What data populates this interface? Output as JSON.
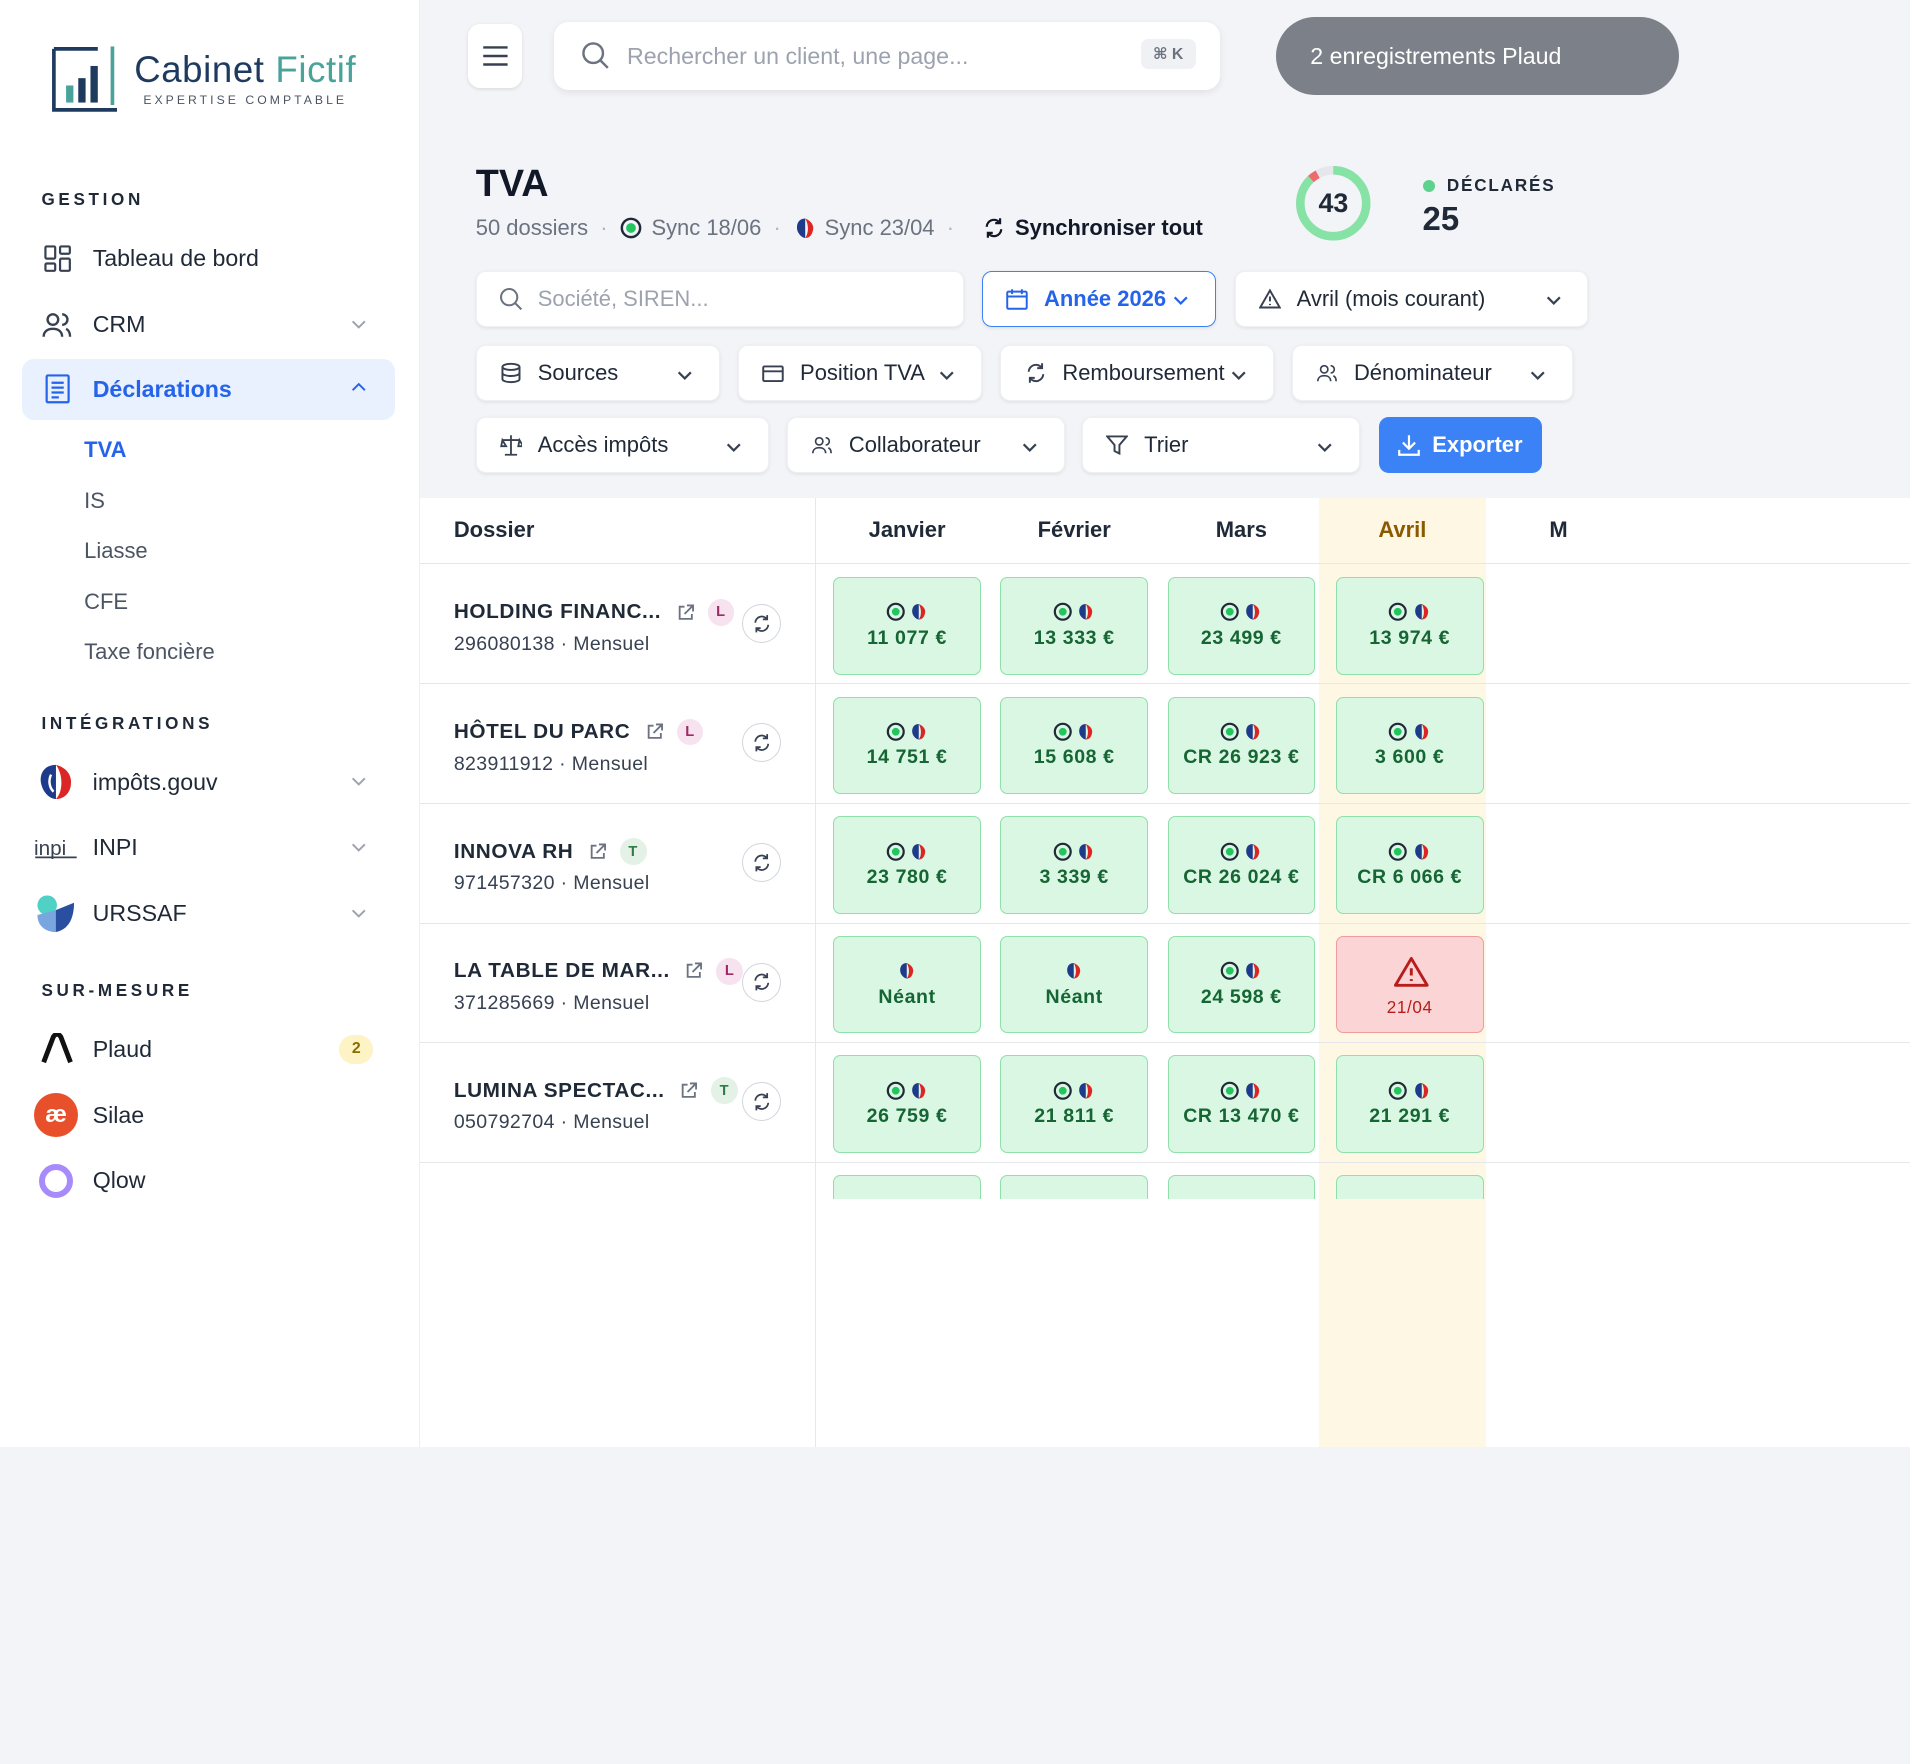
{
  "brand": {
    "name_a": "Cabinet",
    "name_b": "Fictif",
    "tagline": "EXPERTISE COMPTABLE"
  },
  "sidebar": {
    "sections": {
      "gestion": "GESTION",
      "integrations": "INTÉGRATIONS",
      "sur_mesure": "SUR-MESURE"
    },
    "gestion_items": [
      {
        "label": "Tableau de bord",
        "icon": "dashboard-icon"
      },
      {
        "label": "CRM",
        "icon": "users-icon"
      },
      {
        "label": "Déclarations",
        "icon": "document-icon"
      }
    ],
    "declarations_sub": [
      "TVA",
      "IS",
      "Liasse",
      "CFE",
      "Taxe foncière"
    ],
    "integrations_items": [
      {
        "label": "impôts.gouv",
        "icon": "marianne-icon"
      },
      {
        "label": "INPI",
        "icon": "inpi-icon"
      },
      {
        "label": "URSSAF",
        "icon": "urssaf-icon"
      }
    ],
    "sur_mesure_items": [
      {
        "label": "Plaud",
        "icon": "plaud-icon",
        "badge": "2"
      },
      {
        "label": "Silae",
        "icon": "silae-icon"
      },
      {
        "label": "Qlow",
        "icon": "qlow-icon"
      }
    ]
  },
  "topbar": {
    "search_placeholder": "Rechercher un client, une page...",
    "shortcut": "⌘ K",
    "notification": "2 enregistrements Plaud"
  },
  "page": {
    "title": "TVA",
    "count": "50 dossiers",
    "sync1": "Sync 18/06",
    "sync2": "Sync 23/04",
    "sync_all": "Synchroniser tout",
    "ring_value": "43",
    "ring_filled_fraction": 0.88,
    "declared_label": "DÉCLARÉS",
    "declared_value": "25"
  },
  "filters": {
    "search_placeholder": "Société, SIREN...",
    "year": "Année 2026",
    "period": "Avril (mois courant)",
    "sources": "Sources",
    "position": "Position TVA",
    "remboursement": "Remboursement",
    "denominateur": "Dénominateur",
    "acces": "Accès impôts",
    "collaborateur": "Collaborateur",
    "trier": "Trier",
    "export": "Exporter"
  },
  "table": {
    "headers": {
      "dossier": "Dossier",
      "m1": "Janvier",
      "m2": "Février",
      "m3": "Mars",
      "m4": "Avril",
      "m5": "M"
    },
    "rows": [
      {
        "name": "HOLDING FINANC...",
        "tag": "L",
        "sub": "296080138 · Mensuel",
        "cells": [
          "11 077 €",
          "13 333 €",
          "23 499 €",
          "13 974 €"
        ]
      },
      {
        "name": "HÔTEL DU PARC",
        "tag": "L",
        "sub": "823911912 · Mensuel",
        "cells": [
          "14 751 €",
          "15 608 €",
          "CR 26 923 €",
          "3 600 €"
        ]
      },
      {
        "name": "INNOVA RH",
        "tag": "T",
        "sub": "971457320 · Mensuel",
        "cells": [
          "23 780 €",
          "3 339 €",
          "CR 26 024 €",
          "CR 6 066 €"
        ]
      },
      {
        "name": "LA TABLE DE MAR...",
        "tag": "L",
        "sub": "371285669 · Mensuel",
        "cells": [
          "Néant",
          "Néant",
          "24 598 €",
          "21/04"
        ]
      },
      {
        "name": "LUMINA SPECTAC...",
        "tag": "T",
        "sub": "050792704 · Mensuel",
        "cells": [
          "26 759 €",
          "21 811 €",
          "CR 13 470 €",
          "21 291 €"
        ]
      }
    ]
  },
  "colors": {
    "accent": "#3b82f6",
    "ok_bg": "#d9f7e2",
    "ok_border": "#8fe0a9",
    "alert_bg": "#fbd5d5",
    "current_month": "#fdf7e3"
  }
}
